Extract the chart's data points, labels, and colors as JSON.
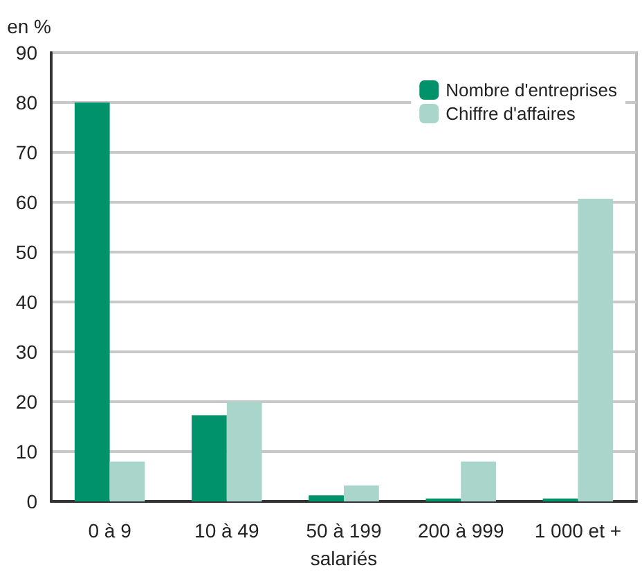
{
  "chart_data": {
    "type": "bar",
    "ylabel": "en %",
    "xlabel": "salariés",
    "categories": [
      "0 à 9",
      "10 à 49",
      "50 à 199",
      "200 à 999",
      "1 000 et +"
    ],
    "series": [
      {
        "name": "Nombre d'entreprises",
        "color": "#00936b",
        "values": [
          80,
          17.3,
          1.2,
          0.6,
          0.6
        ]
      },
      {
        "name": "Chiffre d'affaires",
        "color": "#a9d5ca",
        "values": [
          8,
          20,
          3.2,
          8,
          60.7
        ]
      }
    ],
    "ylim": [
      0,
      90
    ],
    "yticks": [
      0,
      10,
      20,
      30,
      40,
      50,
      60,
      70,
      80,
      90
    ],
    "grid": "y",
    "legend": "top right"
  }
}
